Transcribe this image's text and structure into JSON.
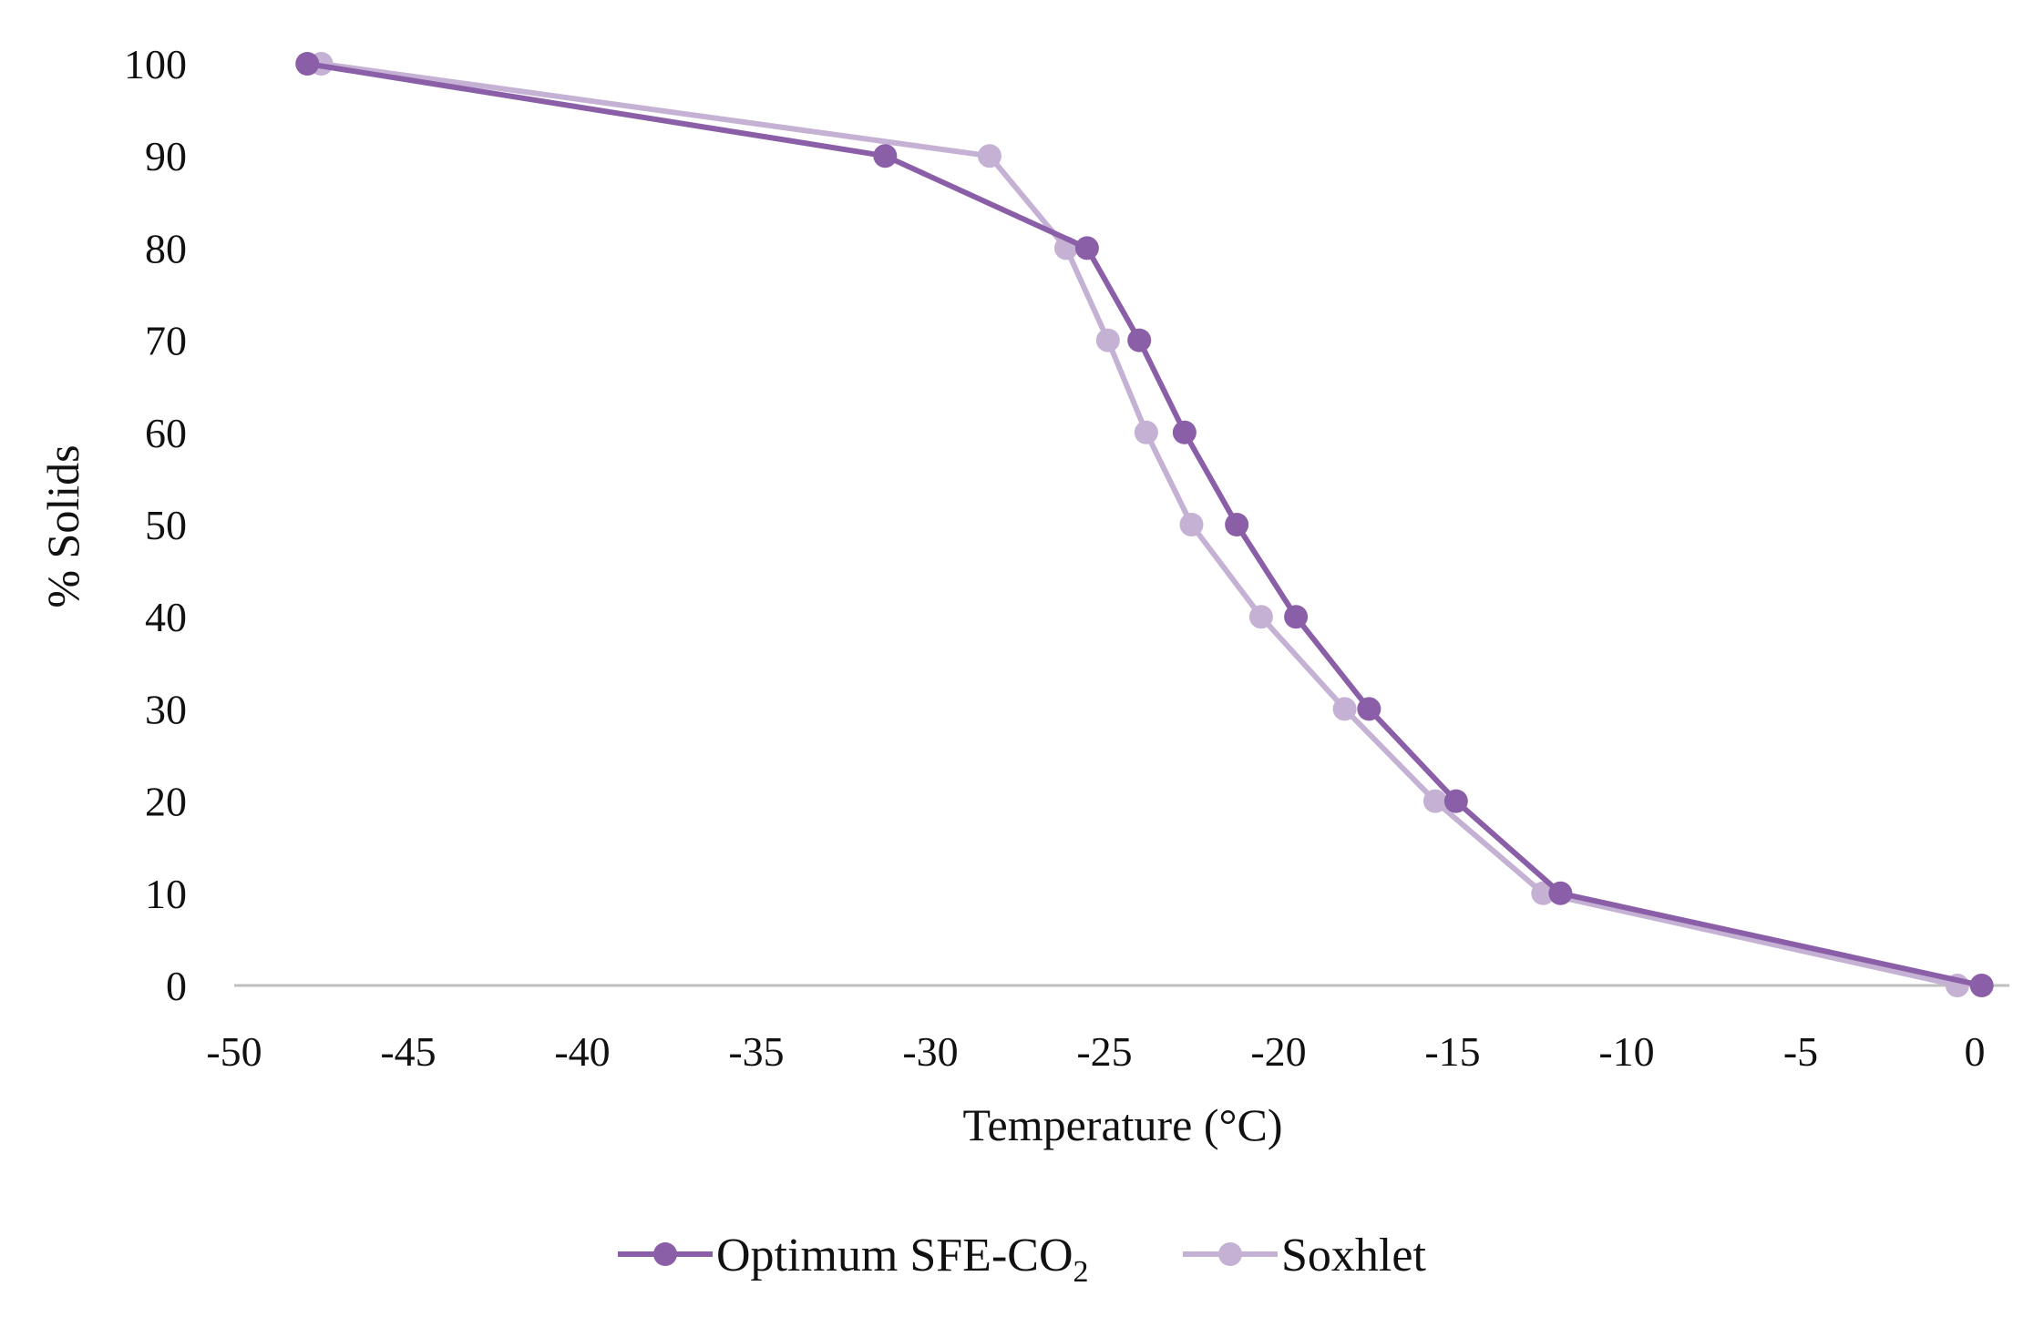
{
  "chart_data": {
    "type": "line",
    "title": "",
    "xlabel": "Temperature (°C)",
    "ylabel": "% Solids",
    "xlim": [
      -50,
      0
    ],
    "ylim": [
      0,
      100
    ],
    "x_ticks": [
      "-50",
      "-45",
      "-40",
      "-35",
      "-30",
      "-25",
      "-20",
      "-15",
      "-10",
      "-5",
      "0"
    ],
    "y_ticks": [
      "0",
      "10",
      "20",
      "30",
      "40",
      "50",
      "60",
      "70",
      "80",
      "90",
      "100"
    ],
    "grid": false,
    "legend_position": "bottom",
    "series": [
      {
        "name": "Optimum SFE-CO2",
        "legend_label_main": "Optimum SFE-CO",
        "legend_label_sub": "2",
        "color": "#8B5FA8",
        "x": [
          -47.9,
          -31.3,
          -25.5,
          -24.0,
          -22.7,
          -21.2,
          -19.5,
          -17.4,
          -14.9,
          -11.9,
          0.2
        ],
        "y": [
          100,
          90,
          80,
          70,
          60,
          50,
          40,
          30,
          20,
          10,
          0
        ]
      },
      {
        "name": "Soxhlet",
        "legend_label_main": "Soxhlet",
        "legend_label_sub": "",
        "color": "#C4B1D4",
        "x": [
          -47.5,
          -28.3,
          -26.1,
          -24.9,
          -23.8,
          -22.5,
          -20.5,
          -18.1,
          -15.5,
          -12.4,
          -0.5
        ],
        "y": [
          100,
          90,
          80,
          70,
          60,
          50,
          40,
          30,
          20,
          10,
          0
        ]
      }
    ]
  }
}
